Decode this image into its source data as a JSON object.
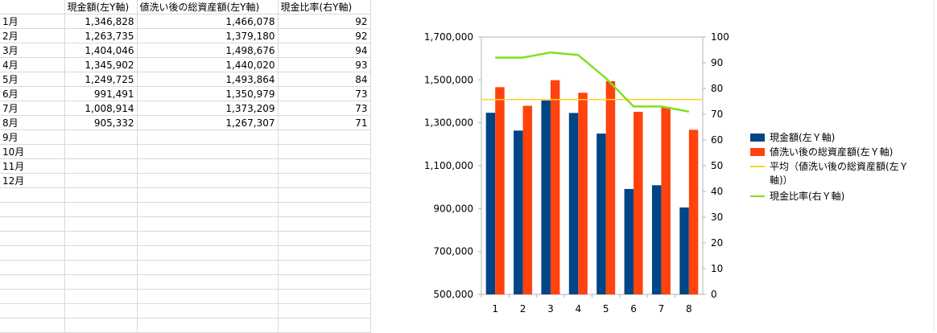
{
  "sheet": {
    "headers": [
      "",
      "現金額(左Y軸)",
      "値洗い後の総資産額(左Y軸)",
      "現金比率(右Y軸)"
    ],
    "rows": [
      [
        "1月",
        "1,346,828",
        "1,466,078",
        "92"
      ],
      [
        "2月",
        "1,263,735",
        "1,379,180",
        "92"
      ],
      [
        "3月",
        "1,404,046",
        "1,498,676",
        "94"
      ],
      [
        "4月",
        "1,345,902",
        "1,440,020",
        "93"
      ],
      [
        "5月",
        "1,249,725",
        "1,493,864",
        "84"
      ],
      [
        "6月",
        "991,491",
        "1,350,979",
        "73"
      ],
      [
        "7月",
        "1,008,914",
        "1,373,209",
        "73"
      ],
      [
        "8月",
        "905,332",
        "1,267,307",
        "71"
      ],
      [
        "9月",
        "",
        "",
        ""
      ],
      [
        "10月",
        "",
        "",
        ""
      ],
      [
        "11月",
        "",
        "",
        ""
      ],
      [
        "12月",
        "",
        "",
        ""
      ]
    ],
    "empty_rows": 10
  },
  "chart_data": {
    "type": "bar",
    "categories": [
      "1",
      "2",
      "3",
      "4",
      "5",
      "6",
      "7",
      "8"
    ],
    "series": [
      {
        "name": "現金額(左Y軸)",
        "kind": "bar",
        "axis": "left",
        "color": "#004586",
        "values": [
          1346828,
          1263735,
          1404046,
          1345902,
          1249725,
          991491,
          1008914,
          905332
        ]
      },
      {
        "name": "値洗い後の総資産額(左Y軸)",
        "kind": "bar",
        "axis": "left",
        "color": "#ff420e",
        "values": [
          1466078,
          1379180,
          1498676,
          1440020,
          1493864,
          1350979,
          1373209,
          1267307
        ]
      },
      {
        "name": "平均（値洗い後の総資産額(左Y軸)）",
        "kind": "line",
        "axis": "left",
        "color": "#ffd320",
        "values": [
          1408664,
          1408664,
          1408664,
          1408664,
          1408664,
          1408664,
          1408664,
          1408664
        ]
      },
      {
        "name": "現金比率(右Y軸)",
        "kind": "line",
        "axis": "right",
        "color": "#7fe01f",
        "values": [
          92,
          92,
          94,
          93,
          84,
          73,
          73,
          71
        ]
      }
    ],
    "left_axis": {
      "min": 500000,
      "max": 1700000,
      "ticks": [
        500000,
        700000,
        900000,
        1100000,
        1300000,
        1500000,
        1700000
      ],
      "tick_labels": [
        "500,000",
        "700,000",
        "900,000",
        "1,100,000",
        "1,300,000",
        "1,500,000",
        "1,700,000"
      ]
    },
    "right_axis": {
      "min": 0,
      "max": 100,
      "ticks": [
        0,
        10,
        20,
        30,
        40,
        50,
        60,
        70,
        80,
        90,
        100
      ],
      "tick_labels": [
        "0",
        "10",
        "20",
        "30",
        "40",
        "50",
        "60",
        "70",
        "80",
        "90",
        "100"
      ]
    },
    "legend": [
      {
        "label": "現金額(左Ｙ軸)",
        "shape": "box",
        "color": "#004586"
      },
      {
        "label": "値洗い後の総資産額(左Ｙ軸)",
        "shape": "box",
        "color": "#ff420e"
      },
      {
        "label": "平均（値洗い後の総資産額(左Ｙ",
        "label2": "軸)）",
        "shape": "line",
        "color": "#ffd320"
      },
      {
        "label": "現金比率(右Ｙ軸)",
        "shape": "line",
        "color": "#7fe01f"
      }
    ],
    "legend_position": "right",
    "grid": false
  }
}
